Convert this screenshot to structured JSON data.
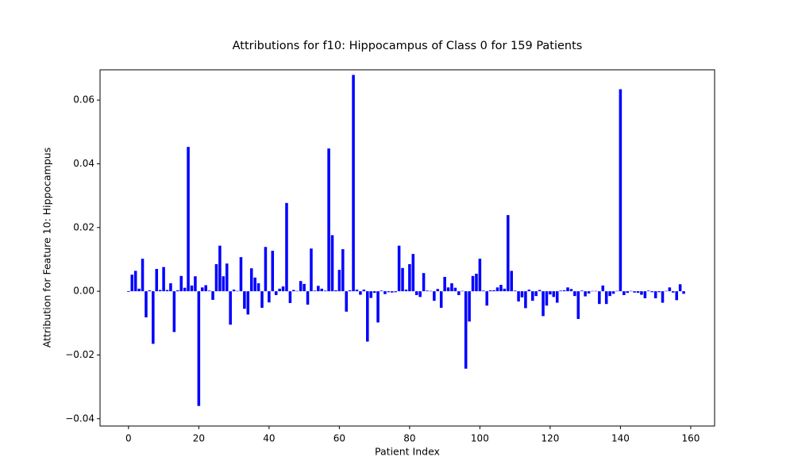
{
  "chart_data": {
    "type": "bar",
    "title": "Attributions for f10: Hippocampus of Class 0 for 159 Patients",
    "xlabel": "Patient Index",
    "ylabel": "Attribution for Feature 10: Hippocampus",
    "color": "#0000ff",
    "x": [
      0,
      1,
      2,
      3,
      4,
      5,
      6,
      7,
      8,
      9,
      10,
      11,
      12,
      13,
      14,
      15,
      16,
      17,
      18,
      19,
      20,
      21,
      22,
      23,
      24,
      25,
      26,
      27,
      28,
      29,
      30,
      31,
      32,
      33,
      34,
      35,
      36,
      37,
      38,
      39,
      40,
      41,
      42,
      43,
      44,
      45,
      46,
      47,
      48,
      49,
      50,
      51,
      52,
      53,
      54,
      55,
      56,
      57,
      58,
      59,
      60,
      61,
      62,
      63,
      64,
      65,
      66,
      67,
      68,
      69,
      70,
      71,
      72,
      73,
      74,
      75,
      76,
      77,
      78,
      79,
      80,
      81,
      82,
      83,
      84,
      85,
      86,
      87,
      88,
      89,
      90,
      91,
      92,
      93,
      94,
      95,
      96,
      97,
      98,
      99,
      100,
      101,
      102,
      103,
      104,
      105,
      106,
      107,
      108,
      109,
      110,
      111,
      112,
      113,
      114,
      115,
      116,
      117,
      118,
      119,
      120,
      121,
      122,
      123,
      124,
      125,
      126,
      127,
      128,
      129,
      130,
      131,
      132,
      133,
      134,
      135,
      136,
      137,
      138,
      139,
      140,
      141,
      142,
      143,
      144,
      145,
      146,
      147,
      148,
      149,
      150,
      151,
      152,
      153,
      154,
      155,
      156,
      157,
      158
    ],
    "values": [
      -0.0002,
      0.0052,
      0.0064,
      0.0008,
      0.0102,
      -0.0082,
      0.0003,
      -0.0165,
      0.007,
      0.0004,
      0.0076,
      0.0004,
      0.0025,
      -0.0128,
      0.0003,
      0.0048,
      0.0011,
      0.0453,
      0.0018,
      0.0047,
      -0.036,
      0.0012,
      0.0019,
      0.0002,
      -0.0027,
      0.0085,
      0.0143,
      0.0047,
      0.0087,
      -0.0105,
      0.0005,
      0.0001,
      0.0107,
      -0.0055,
      -0.0073,
      0.0072,
      0.0043,
      0.0025,
      -0.0052,
      0.0139,
      -0.0035,
      0.0127,
      -0.0012,
      0.0008,
      0.0015,
      0.0277,
      -0.0037,
      0.0004,
      0.0001,
      0.0032,
      0.0023,
      -0.0042,
      0.0134,
      0.0002,
      0.0017,
      0.0008,
      0.0002,
      0.0448,
      0.0176,
      0.0003,
      0.0067,
      0.0132,
      -0.0064,
      0.0003,
      0.0679,
      0.0005,
      -0.0011,
      0.0005,
      -0.0158,
      -0.0021,
      -0.0005,
      -0.0098,
      0.0002,
      -0.0009,
      -0.0003,
      -0.0004,
      -0.0003,
      0.0143,
      0.0073,
      0.0005,
      0.0085,
      0.0117,
      -0.0012,
      -0.0018,
      0.0057,
      0.0002,
      0.0001,
      -0.003,
      0.0007,
      -0.0052,
      0.0045,
      0.0012,
      0.0025,
      0.0011,
      -0.0012,
      0.0001,
      -0.0243,
      -0.0095,
      0.0048,
      0.0055,
      0.0102,
      0.0002,
      -0.0045,
      0.0003,
      0.0003,
      0.0012,
      0.002,
      0.0008,
      0.0239,
      0.0064,
      0.0002,
      -0.0032,
      -0.0019,
      -0.0053,
      0.0005,
      -0.003,
      -0.0015,
      0.0004,
      -0.0078,
      -0.0045,
      -0.001,
      -0.0018,
      -0.0036,
      0.0002,
      0.0003,
      0.0012,
      0.0007,
      -0.0015,
      -0.0087,
      0.0002,
      -0.0016,
      -0.0007,
      0.0001,
      0.0001,
      -0.004,
      0.0018,
      -0.004,
      -0.0015,
      -0.0008,
      0.0001,
      0.0634,
      -0.0012,
      -0.0005,
      0.0001,
      -0.0004,
      -0.0005,
      -0.0011,
      -0.0022,
      0.0002,
      -0.0003,
      -0.0022,
      -0.0003,
      -0.0036,
      0.0001,
      0.0012,
      -0.0004,
      -0.0028,
      0.0022,
      -0.0008
    ],
    "xlim": [
      -8.1,
      166.8
    ],
    "ylim": [
      -0.0423,
      0.0695
    ],
    "xticks": [
      0,
      20,
      40,
      60,
      80,
      100,
      120,
      140,
      160
    ],
    "yticks": [
      {
        "value": -0.04,
        "label": "−0.04"
      },
      {
        "value": -0.02,
        "label": "−0.02"
      },
      {
        "value": 0,
        "label": "0.00"
      },
      {
        "value": 0.02,
        "label": "0.02"
      },
      {
        "value": 0.04,
        "label": "0.04"
      },
      {
        "value": 0.06,
        "label": "0.06"
      }
    ]
  }
}
